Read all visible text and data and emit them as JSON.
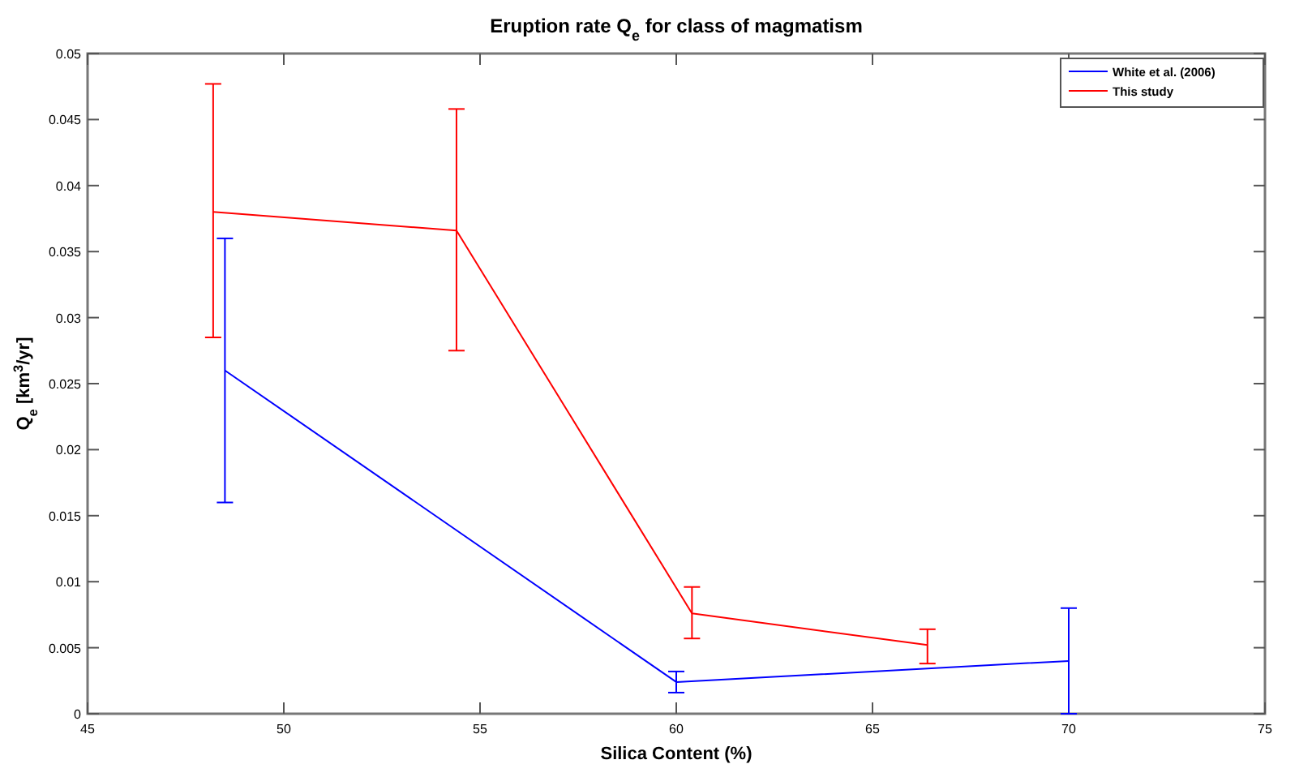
{
  "chart_data": {
    "type": "line",
    "title": "Eruption rate Q$_{e}$ for class of magmatism",
    "xlabel": "Silica Content (%)",
    "ylabel": "Q$_{e}$ [km$^{3}$/yr]",
    "xlim": [
      45,
      75
    ],
    "xticks": [
      45,
      50,
      55,
      60,
      65,
      70,
      75
    ],
    "ylim": [
      0,
      0.05
    ],
    "yticks": [
      0,
      0.005,
      0.01,
      0.015,
      0.02,
      0.025,
      0.03,
      0.035,
      0.04,
      0.045,
      0.05
    ],
    "grid": false,
    "legend": "top right",
    "marker": "none",
    "line_style": "solid",
    "series": [
      {
        "name": "White et al. (2006)",
        "color": "#0000ff",
        "x": [
          48.5,
          60,
          70
        ],
        "values": [
          0.026,
          0.0024,
          0.004
        ],
        "errors": [
          0.01,
          [
            0.0016,
            0.0032
          ],
          [
            0,
            0.008
          ]
        ]
      },
      {
        "name": "This study",
        "color": "#ff0000",
        "x": [
          48.2,
          54.4,
          60.4,
          66.4
        ],
        "values": [
          0.038,
          0.0366,
          0.0076,
          0.0052
        ],
        "errors": [
          [
            0.0285,
            0.0477
          ],
          [
            0.0275,
            0.0458
          ],
          [
            0.0057,
            0.0096
          ],
          [
            0.0038,
            0.0064
          ]
        ]
      }
    ]
  }
}
